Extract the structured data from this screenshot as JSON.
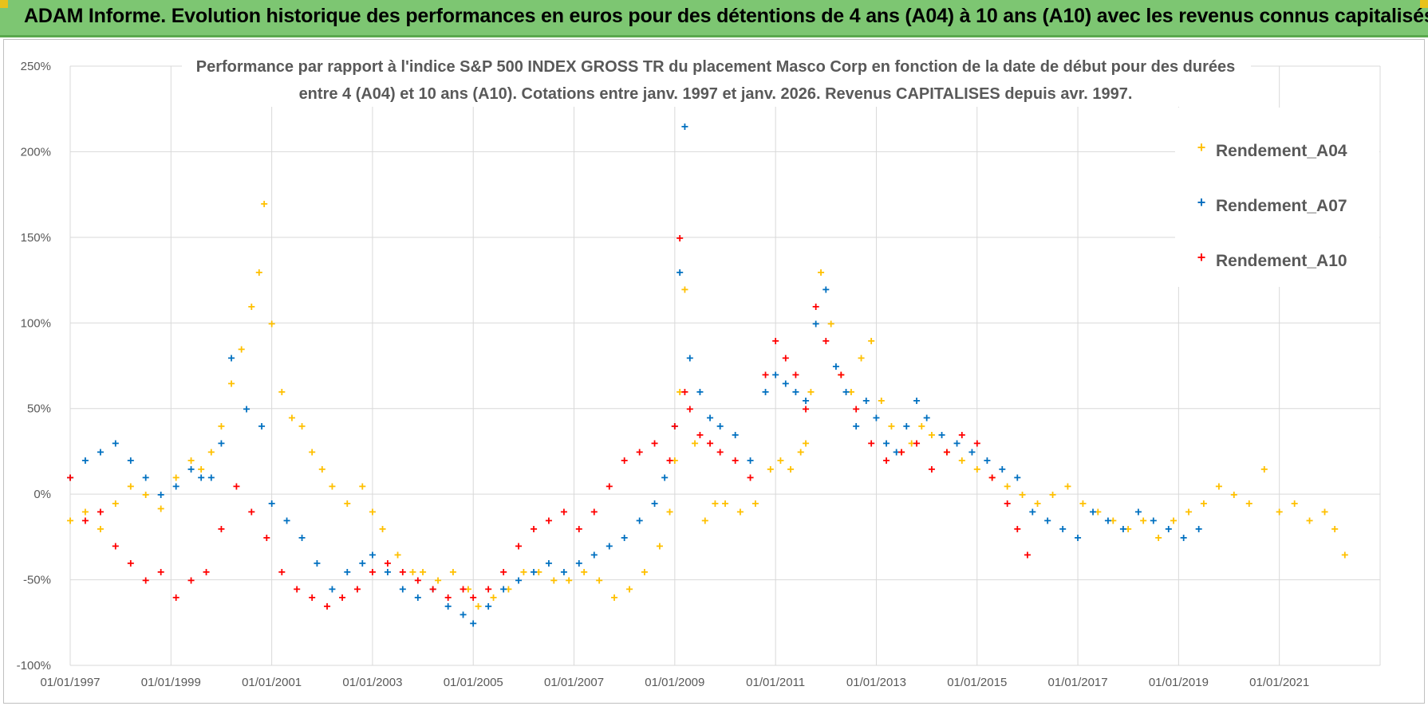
{
  "header": {
    "title": "ADAM Informe. Evolution historique des performances en euros pour des détentions de 4 ans (A04) à 10 ans (A10) avec les revenus connus capitalisés"
  },
  "colors": {
    "header_bg": "#7dc672",
    "A04": "#ffc000",
    "A07": "#0070c0",
    "A10": "#ff0000",
    "grid": "#d9d9d9"
  },
  "chart_data": {
    "type": "scatter",
    "title_lines": [
      "Performance par rapport à l'indice S&P 500 INDEX GROSS TR  du placement Masco Corp en fonction de la date de début pour des durées",
      "entre 4 (A04) et 10 ans (A10).  Cotations entre janv. 1997 et janv. 2026. Revenus CAPITALISES depuis avr. 1997."
    ],
    "x_range": [
      1997.0,
      2023.0
    ],
    "ylim": [
      -100,
      250
    ],
    "y_ticks": [
      {
        "value": 250,
        "label": "250%"
      },
      {
        "value": 200,
        "label": "200%"
      },
      {
        "value": 150,
        "label": "150%"
      },
      {
        "value": 100,
        "label": "100%"
      },
      {
        "value": 50,
        "label": "50%"
      },
      {
        "value": 0,
        "label": "0%"
      },
      {
        "value": -50,
        "label": "-50%"
      },
      {
        "value": -100,
        "label": "-100%"
      }
    ],
    "x_ticks": [
      {
        "value": 1997,
        "label": "01/01/1997"
      },
      {
        "value": 1999,
        "label": "01/01/1999"
      },
      {
        "value": 2001,
        "label": "01/01/2001"
      },
      {
        "value": 2003,
        "label": "01/01/2003"
      },
      {
        "value": 2005,
        "label": "01/01/2005"
      },
      {
        "value": 2007,
        "label": "01/01/2007"
      },
      {
        "value": 2009,
        "label": "01/01/2009"
      },
      {
        "value": 2011,
        "label": "01/01/2011"
      },
      {
        "value": 2013,
        "label": "01/01/2013"
      },
      {
        "value": 2015,
        "label": "01/01/2015"
      },
      {
        "value": 2017,
        "label": "01/01/2017"
      },
      {
        "value": 2019,
        "label": "01/01/2019"
      },
      {
        "value": 2021,
        "label": "01/01/2021"
      }
    ],
    "legend_position": "top-right",
    "series": [
      {
        "name": "Rendement_A04",
        "color": "#ffc000",
        "x": [
          1997.0,
          1997.3,
          1997.6,
          1997.9,
          1998.2,
          1998.5,
          1998.8,
          1999.1,
          1999.4,
          1999.6,
          1999.8,
          2000.0,
          2000.2,
          2000.4,
          2000.6,
          2000.75,
          2000.85,
          2001.0,
          2001.2,
          2001.4,
          2001.6,
          2001.8,
          2002.0,
          2002.2,
          2002.5,
          2002.8,
          2003.0,
          2003.2,
          2003.5,
          2003.8,
          2004.0,
          2004.3,
          2004.6,
          2004.9,
          2005.1,
          2005.4,
          2005.7,
          2006.0,
          2006.3,
          2006.6,
          2006.9,
          2007.2,
          2007.5,
          2007.8,
          2008.1,
          2008.4,
          2008.7,
          2008.9,
          2009.0,
          2009.1,
          2009.2,
          2009.4,
          2009.6,
          2009.8,
          2010.0,
          2010.3,
          2010.6,
          2010.9,
          2011.1,
          2011.3,
          2011.5,
          2011.6,
          2011.7,
          2011.9,
          2012.1,
          2012.3,
          2012.5,
          2012.7,
          2012.9,
          2013.1,
          2013.3,
          2013.5,
          2013.7,
          2013.9,
          2014.1,
          2014.4,
          2014.7,
          2015.0,
          2015.3,
          2015.6,
          2015.9,
          2016.2,
          2016.5,
          2016.8,
          2017.1,
          2017.4,
          2017.7,
          2018.0,
          2018.3,
          2018.6,
          2018.9,
          2019.2,
          2019.5,
          2019.8,
          2020.1,
          2020.4,
          2020.7,
          2021.0,
          2021.3,
          2021.6,
          2021.9,
          2022.1,
          2022.3
        ],
        "y": [
          -15,
          -10,
          -20,
          -5,
          5,
          0,
          -8,
          10,
          20,
          15,
          25,
          40,
          65,
          85,
          110,
          130,
          170,
          100,
          60,
          45,
          40,
          25,
          15,
          5,
          -5,
          5,
          -10,
          -20,
          -35,
          -45,
          -45,
          -50,
          -45,
          -55,
          -65,
          -60,
          -55,
          -45,
          -45,
          -50,
          -50,
          -45,
          -50,
          -60,
          -55,
          -45,
          -30,
          -10,
          20,
          60,
          120,
          30,
          -15,
          -5,
          -5,
          -10,
          -5,
          15,
          20,
          15,
          25,
          30,
          60,
          130,
          100,
          70,
          60,
          80,
          90,
          55,
          40,
          25,
          30,
          40,
          35,
          25,
          20,
          15,
          10,
          5,
          0,
          -5,
          0,
          5,
          -5,
          -10,
          -15,
          -20,
          -15,
          -25,
          -15,
          -10,
          -5,
          5,
          0,
          -5,
          15,
          -10,
          -5,
          -15,
          -10,
          -20,
          -35
        ]
      },
      {
        "name": "Rendement_A07",
        "color": "#0070c0",
        "x": [
          1997.0,
          1997.3,
          1997.6,
          1997.9,
          1998.2,
          1998.5,
          1998.8,
          1999.1,
          1999.4,
          1999.6,
          1999.8,
          2000.0,
          2000.2,
          2000.5,
          2000.8,
          2001.0,
          2001.3,
          2001.6,
          2001.9,
          2002.2,
          2002.5,
          2002.8,
          2003.0,
          2003.3,
          2003.6,
          2003.9,
          2004.2,
          2004.5,
          2004.8,
          2005.0,
          2005.3,
          2005.6,
          2005.9,
          2006.2,
          2006.5,
          2006.8,
          2007.1,
          2007.4,
          2007.7,
          2008.0,
          2008.3,
          2008.6,
          2008.8,
          2009.0,
          2009.1,
          2009.2,
          2009.3,
          2009.5,
          2009.7,
          2009.9,
          2010.2,
          2010.5,
          2010.8,
          2011.0,
          2011.2,
          2011.4,
          2011.6,
          2011.8,
          2012.0,
          2012.2,
          2012.4,
          2012.6,
          2012.8,
          2013.0,
          2013.2,
          2013.4,
          2013.6,
          2013.8,
          2014.0,
          2014.3,
          2014.6,
          2014.9,
          2015.2,
          2015.5,
          2015.8,
          2016.1,
          2016.4,
          2016.7,
          2017.0,
          2017.3,
          2017.6,
          2017.9,
          2018.2,
          2018.5,
          2018.8,
          2019.1,
          2019.4
        ],
        "y": [
          10,
          20,
          25,
          30,
          20,
          10,
          0,
          5,
          15,
          10,
          10,
          30,
          80,
          50,
          40,
          -5,
          -15,
          -25,
          -40,
          -55,
          -45,
          -40,
          -35,
          -45,
          -55,
          -60,
          -55,
          -65,
          -70,
          -75,
          -65,
          -55,
          -50,
          -45,
          -40,
          -45,
          -40,
          -35,
          -30,
          -25,
          -15,
          -5,
          10,
          40,
          130,
          215,
          80,
          60,
          45,
          40,
          35,
          20,
          60,
          70,
          65,
          60,
          55,
          100,
          120,
          75,
          60,
          40,
          55,
          45,
          30,
          25,
          40,
          55,
          45,
          35,
          30,
          25,
          20,
          15,
          10,
          -10,
          -15,
          -20,
          -25,
          -10,
          -15,
          -20,
          -10,
          -15,
          -20,
          -25,
          -20
        ]
      },
      {
        "name": "Rendement_A10",
        "color": "#ff0000",
        "x": [
          1997.0,
          1997.3,
          1997.6,
          1997.9,
          1998.2,
          1998.5,
          1998.8,
          1999.1,
          1999.4,
          1999.7,
          2000.0,
          2000.3,
          2000.6,
          2000.9,
          2001.2,
          2001.5,
          2001.8,
          2002.1,
          2002.4,
          2002.7,
          2003.0,
          2003.3,
          2003.6,
          2003.9,
          2004.2,
          2004.5,
          2004.8,
          2005.0,
          2005.3,
          2005.6,
          2005.9,
          2006.2,
          2006.5,
          2006.8,
          2007.1,
          2007.4,
          2007.7,
          2008.0,
          2008.3,
          2008.6,
          2008.9,
          2009.0,
          2009.1,
          2009.2,
          2009.3,
          2009.5,
          2009.7,
          2009.9,
          2010.2,
          2010.5,
          2010.8,
          2011.0,
          2011.2,
          2011.4,
          2011.6,
          2011.8,
          2012.0,
          2012.3,
          2012.6,
          2012.9,
          2013.2,
          2013.5,
          2013.8,
          2014.1,
          2014.4,
          2014.7,
          2015.0,
          2015.3,
          2015.6,
          2015.8,
          2016.0
        ],
        "y": [
          10,
          -15,
          -10,
          -30,
          -40,
          -50,
          -45,
          -60,
          -50,
          -45,
          -20,
          5,
          -10,
          -25,
          -45,
          -55,
          -60,
          -65,
          -60,
          -55,
          -45,
          -40,
          -45,
          -50,
          -55,
          -60,
          -55,
          -60,
          -55,
          -45,
          -30,
          -20,
          -15,
          -10,
          -20,
          -10,
          5,
          20,
          25,
          30,
          20,
          40,
          150,
          60,
          50,
          35,
          30,
          25,
          20,
          10,
          70,
          90,
          80,
          70,
          50,
          110,
          90,
          70,
          50,
          30,
          20,
          25,
          30,
          15,
          25,
          35,
          30,
          10,
          -5,
          -20,
          -35
        ]
      }
    ]
  }
}
